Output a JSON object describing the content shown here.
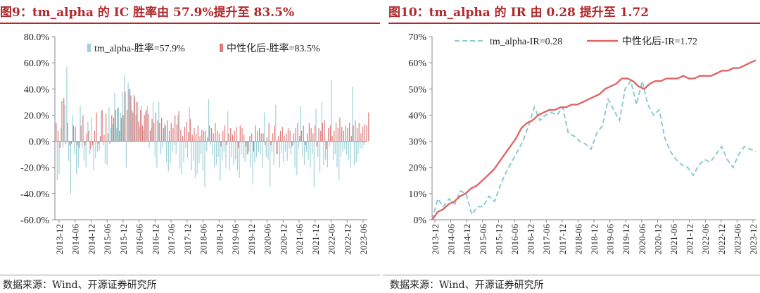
{
  "charts": {
    "left": {
      "title": "图9：tm_alpha 的 IC 胜率由 57.9%提升至 83.5%",
      "source": "数据来源：Wind、开源证券研究所"
    },
    "right": {
      "title": "图10：tm_alpha 的 IR 由 0.28 提升至 1.72",
      "source": "数据来源：Wind、开源证券研究所"
    }
  },
  "colors": {
    "title": "#b0292c",
    "bar_blue": "#9dd2d8",
    "bar_red": "#e07a7a",
    "line_blue": "#8ccbd1",
    "line_red": "#e06666"
  },
  "chart_data": [
    {
      "type": "bar",
      "x_tick_labels": [
        "2013-12",
        "2014-06",
        "2014-12",
        "2015-06",
        "2015-12",
        "2016-06",
        "2016-12",
        "2017-06",
        "2017-12",
        "2018-06",
        "2018-12",
        "2019-06",
        "2019-12",
        "2020-06",
        "2020-12",
        "2021-06",
        "2021-12",
        "2022-06",
        "2022-12",
        "2023-06"
      ],
      "yticks": [
        "80.0%",
        "60.0%",
        "40.0%",
        "20.0%",
        "0.0%",
        "-20.0%",
        "-40.0%",
        "-60.0%"
      ],
      "ylim": [
        -60,
        80
      ],
      "legend": "top-center",
      "series": [
        {
          "name": "tm_alpha-胜率=57.9%",
          "values": [
            14,
            -30,
            -25,
            10,
            -5,
            28,
            57,
            -15,
            -40,
            20,
            -10,
            -25,
            -20,
            27,
            -5,
            -15,
            -20,
            15,
            -10,
            18,
            -22,
            -13,
            -8,
            -7,
            23,
            -3,
            -17,
            -18,
            26,
            10,
            13,
            37,
            10,
            26,
            22,
            38,
            51,
            -20,
            45,
            40,
            24,
            36,
            20,
            30,
            11,
            27,
            8,
            22,
            27,
            -5,
            10,
            30,
            -12,
            -20,
            30,
            -10,
            -5,
            14,
            -16,
            -23,
            -17,
            -8,
            -3,
            -10,
            20,
            -21,
            -25,
            -16,
            -5,
            -13,
            26,
            -22,
            -15,
            -28,
            -25,
            -17,
            -10,
            -23,
            -35,
            -8,
            32,
            -3,
            -10,
            -20,
            -18,
            -12,
            -30,
            -15,
            -8,
            -20,
            23,
            -22,
            -12,
            -18,
            -14,
            -22,
            -28,
            -10,
            -13,
            -16,
            -10,
            -8,
            -20,
            -33,
            -16,
            -12,
            -8,
            -10,
            -20,
            22,
            -12,
            -14,
            -35,
            -8,
            -18,
            28,
            -10,
            -20,
            -9,
            -16,
            -8,
            -15,
            -6,
            -10,
            -3,
            -20,
            -26,
            -5,
            27,
            -12,
            -18,
            -8,
            -14,
            -20,
            -10,
            -35,
            25,
            -12,
            -24,
            30,
            -18,
            -14,
            -20,
            -4,
            47,
            -14,
            -10,
            -20,
            -30,
            -12,
            -8,
            -6,
            -10,
            -14,
            -20,
            42,
            -18,
            -16,
            -10,
            -5,
            -6,
            -3,
            -1
          ],
          "note": "monthly IC values, approximate"
        },
        {
          "name": "中性化后-胜率=83.5%",
          "values": [
            14,
            8,
            -5,
            31,
            33,
            -2,
            14,
            -3,
            -2,
            12,
            11,
            -3,
            -5,
            12,
            20,
            -3,
            6,
            8,
            -6,
            -3,
            8,
            22,
            -2,
            4,
            24,
            5,
            21,
            6,
            -2,
            20,
            18,
            24,
            25,
            8,
            18,
            20,
            38,
            24,
            40,
            35,
            22,
            34,
            30,
            15,
            24,
            12,
            20,
            24,
            21,
            8,
            17,
            14,
            22,
            16,
            14,
            18,
            10,
            12,
            16,
            8,
            14,
            10,
            20,
            13,
            23,
            9,
            4,
            11,
            15,
            7,
            17,
            5,
            10,
            6,
            12,
            4,
            9,
            8,
            8,
            3,
            12,
            10,
            6,
            14,
            8,
            6,
            -4,
            8,
            12,
            -3,
            6,
            10,
            5,
            8,
            11,
            -5,
            12,
            10,
            5,
            -4,
            -10,
            4,
            6,
            -8,
            12,
            8,
            10,
            6,
            6,
            -3,
            3,
            14,
            -3,
            6,
            12,
            -10,
            4,
            8,
            11,
            4,
            6,
            10,
            8,
            -4,
            6,
            10,
            14,
            4,
            8,
            12,
            -3,
            6,
            14,
            10,
            6,
            12,
            -4,
            10,
            8,
            14,
            16,
            -6,
            10,
            12,
            4,
            8,
            14,
            10,
            18,
            11,
            8,
            12,
            10,
            14,
            4,
            12,
            16,
            10,
            14,
            6,
            11,
            13,
            12,
            22
          ],
          "note": "monthly IC values after neutralization, approximate"
        }
      ]
    },
    {
      "type": "line",
      "x_tick_labels": [
        "2013-12",
        "2014-06",
        "2014-12",
        "2015-06",
        "2015-12",
        "2016-06",
        "2016-12",
        "2017-06",
        "2017-12",
        "2018-06",
        "2018-12",
        "2019-06",
        "2019-12",
        "2020-06",
        "2020-12",
        "2021-06",
        "2021-12",
        "2022-06",
        "2022-12",
        "2023-06",
        "2023-12"
      ],
      "yticks": [
        "70%",
        "60%",
        "50%",
        "40%",
        "30%",
        "20%",
        "10%",
        "0%"
      ],
      "ylim": [
        0,
        70
      ],
      "legend": "top-center",
      "series": [
        {
          "name": "tm_alpha-IR=0.28",
          "style": "dashed",
          "values": [
            0,
            8,
            5,
            8,
            6,
            11,
            10,
            2,
            5,
            5,
            9,
            7,
            13,
            18,
            22,
            26,
            30,
            36,
            43,
            38,
            40,
            41,
            40,
            43,
            33,
            32,
            30,
            29,
            27,
            33,
            36,
            46,
            42,
            38,
            50,
            53,
            44,
            53,
            44,
            40,
            42,
            31,
            26,
            23,
            21,
            20,
            17,
            21,
            23,
            22,
            25,
            28,
            23,
            20,
            25,
            28,
            27,
            26
          ]
        },
        {
          "name": "中性化后-IR=1.72",
          "style": "solid",
          "values": [
            0,
            3,
            4,
            6,
            7,
            9,
            10,
            12,
            13,
            15,
            17,
            19,
            22,
            25,
            28,
            31,
            35,
            37,
            38,
            40,
            41,
            42,
            42,
            43,
            43,
            44,
            44,
            45,
            46,
            47,
            48,
            50,
            51,
            52,
            54,
            54,
            53,
            51,
            50,
            52,
            53,
            53,
            54,
            54,
            54,
            55,
            54,
            54,
            55,
            55,
            55,
            56,
            57,
            57,
            58,
            58,
            59,
            60,
            61
          ]
        }
      ]
    }
  ]
}
